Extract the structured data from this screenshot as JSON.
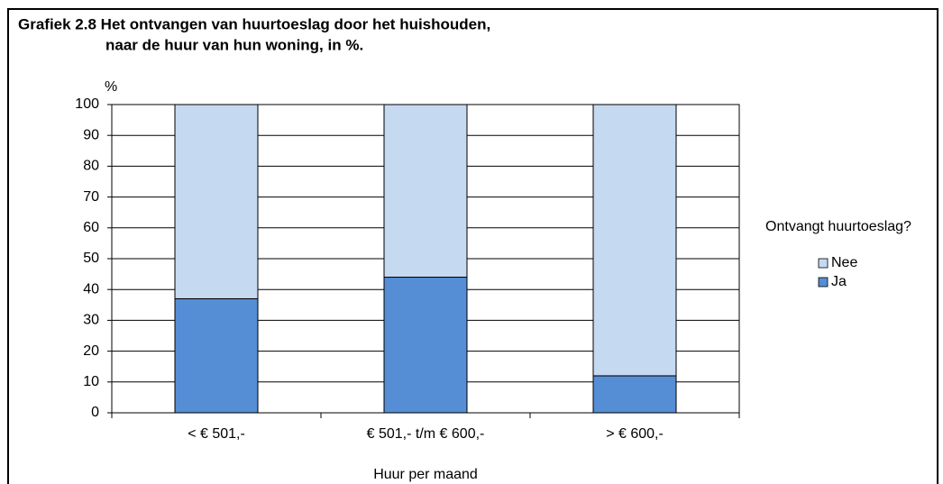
{
  "chart_data": {
    "type": "stacked_bar",
    "title": [
      "Grafiek 2.8 Het ontvangen van huurtoeslag door het huishouden,",
      "naar de huur van hun woning, in %."
    ],
    "y_label": "%",
    "x_label": "Huur per maand",
    "categories": [
      "< € 501,-",
      "€ 501,- t/m € 600,-",
      "> € 600,-"
    ],
    "series": [
      {
        "name": "Ja",
        "color": "#558ed5",
        "values": [
          37,
          44,
          12
        ]
      },
      {
        "name": "Nee",
        "color": "#c5d9f1",
        "values": [
          63,
          56,
          88
        ]
      }
    ],
    "legend_title": "Ontvangt huurtoeslag?",
    "legend": "right",
    "ylim": [
      0,
      100
    ],
    "yticks": [
      0,
      10,
      20,
      30,
      40,
      50,
      60,
      70,
      80,
      90,
      100
    ],
    "grid": true
  }
}
